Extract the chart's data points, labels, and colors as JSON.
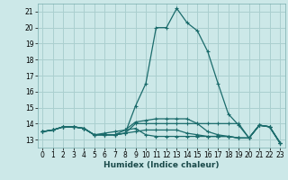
{
  "xlabel": "Humidex (Indice chaleur)",
  "bg_color": "#cce8e8",
  "grid_color": "#aacfcf",
  "line_color": "#1a6b6b",
  "xlim": [
    -0.5,
    23.5
  ],
  "ylim": [
    12.5,
    21.5
  ],
  "yticks": [
    13,
    14,
    15,
    16,
    17,
    18,
    19,
    20,
    21
  ],
  "xticks": [
    0,
    1,
    2,
    3,
    4,
    5,
    6,
    7,
    8,
    9,
    10,
    11,
    12,
    13,
    14,
    15,
    16,
    17,
    18,
    19,
    20,
    21,
    22,
    23
  ],
  "lines": [
    [
      13.5,
      13.6,
      13.8,
      13.8,
      13.7,
      13.3,
      13.3,
      13.3,
      13.4,
      15.1,
      16.5,
      20.0,
      20.0,
      21.2,
      20.3,
      19.8,
      18.5,
      16.5,
      14.6,
      13.9,
      13.1,
      13.9,
      13.8,
      12.8
    ],
    [
      13.5,
      13.6,
      13.8,
      13.8,
      13.7,
      13.3,
      13.3,
      13.3,
      13.4,
      14.0,
      14.0,
      14.0,
      14.0,
      14.0,
      14.0,
      14.0,
      14.0,
      14.0,
      14.0,
      14.0,
      13.1,
      13.9,
      13.8,
      12.8
    ],
    [
      13.5,
      13.6,
      13.8,
      13.8,
      13.7,
      13.3,
      13.4,
      13.5,
      13.6,
      14.1,
      14.2,
      14.3,
      14.3,
      14.3,
      14.3,
      14.0,
      13.5,
      13.3,
      13.2,
      13.1,
      13.1,
      13.9,
      13.8,
      12.8
    ],
    [
      13.5,
      13.6,
      13.8,
      13.8,
      13.7,
      13.3,
      13.3,
      13.3,
      13.6,
      13.7,
      13.3,
      13.2,
      13.2,
      13.2,
      13.2,
      13.2,
      13.2,
      13.2,
      13.2,
      13.1,
      13.1,
      13.9,
      13.8,
      12.8
    ],
    [
      13.5,
      13.6,
      13.8,
      13.8,
      13.7,
      13.3,
      13.3,
      13.3,
      13.4,
      13.5,
      13.6,
      13.6,
      13.6,
      13.6,
      13.4,
      13.3,
      13.2,
      13.2,
      13.2,
      13.1,
      13.1,
      13.9,
      13.8,
      12.8
    ]
  ]
}
